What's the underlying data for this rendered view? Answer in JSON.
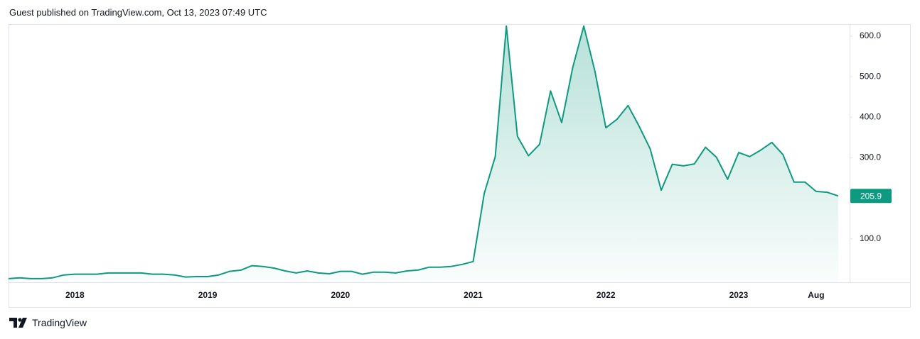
{
  "header": {
    "text": "Guest published on TradingView.com, Oct 13, 2023 07:49 UTC"
  },
  "footer": {
    "brand": "TradingView"
  },
  "chart_data": {
    "type": "area",
    "color": "#0e9a80",
    "categories": [
      null,
      null,
      null,
      null,
      null,
      null,
      "2018",
      null,
      null,
      null,
      null,
      null,
      null,
      null,
      null,
      null,
      null,
      null,
      "2019",
      null,
      null,
      null,
      null,
      null,
      null,
      null,
      null,
      null,
      null,
      null,
      "2020",
      null,
      null,
      null,
      null,
      null,
      null,
      null,
      null,
      null,
      null,
      null,
      "2021",
      null,
      null,
      null,
      null,
      null,
      null,
      null,
      null,
      null,
      null,
      null,
      "2022",
      null,
      null,
      null,
      null,
      null,
      null,
      null,
      null,
      null,
      null,
      null,
      "2023",
      null,
      null,
      null,
      null,
      null,
      null,
      "Aug",
      null,
      null
    ],
    "values": [
      2,
      4,
      2,
      2,
      4,
      11,
      13,
      13,
      13,
      16,
      16,
      16,
      16,
      13,
      13,
      11,
      6,
      7,
      7,
      11,
      20,
      23,
      34,
      32,
      28,
      21,
      16,
      21,
      16,
      14,
      20,
      20,
      13,
      18,
      18,
      16,
      21,
      23,
      30,
      30,
      32,
      37,
      44,
      212,
      303,
      625,
      353,
      305,
      333,
      465,
      387,
      523,
      625,
      514,
      374,
      395,
      429,
      378,
      322,
      220,
      284,
      280,
      285,
      326,
      301,
      247,
      313,
      303,
      319,
      338,
      308,
      240,
      240,
      217,
      215,
      205.9
    ],
    "ylim": [
      -7,
      628
    ],
    "yticks": [
      {
        "value": 100,
        "label": "100.0"
      },
      {
        "value": 300,
        "label": "300.0"
      },
      {
        "value": 400,
        "label": "400.0"
      },
      {
        "value": 500,
        "label": "500.0"
      },
      {
        "value": 600,
        "label": "600.0"
      }
    ],
    "grid": false
  }
}
